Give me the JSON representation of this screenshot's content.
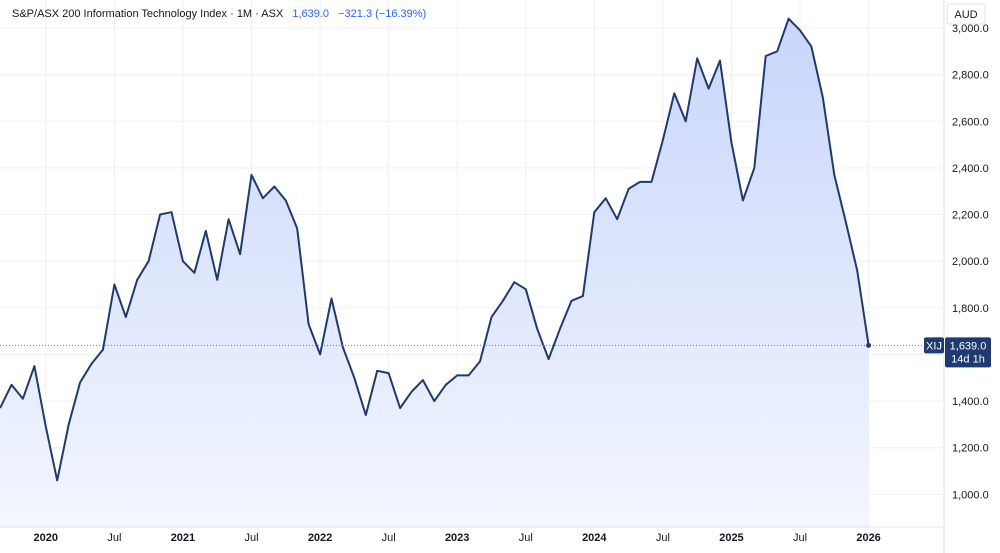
{
  "header": {
    "title": "S&P/ASX 200 Information Technology Index · 1M · ASX",
    "last_value": "1,639.0",
    "change": "−321.3 (−16.39%)"
  },
  "axis": {
    "currency": "AUD"
  },
  "price_badge": {
    "symbol": "XIJ",
    "value": "1,639.0",
    "countdown": "14d 1h"
  },
  "colors": {
    "line": "#1e3a6e",
    "fill_top": "#c9d6fb",
    "fill_bottom": "#f3f6fe",
    "badge": "#1e3a6e",
    "grid": "#eef0f3",
    "last_price_line": "#6b7a99"
  },
  "chart_data": {
    "type": "area",
    "title": "S&P/ASX 200 Information Technology Index · 1M · ASX",
    "xlabel": "",
    "ylabel": "",
    "ylim": [
      860,
      3120
    ],
    "grid": true,
    "x_tick_labels": [
      {
        "label": "2020",
        "t": 2020.0,
        "bold": true
      },
      {
        "label": "Jul",
        "t": 2020.5,
        "bold": false
      },
      {
        "label": "2021",
        "t": 2021.0,
        "bold": true
      },
      {
        "label": "Jul",
        "t": 2021.5,
        "bold": false
      },
      {
        "label": "2022",
        "t": 2022.0,
        "bold": true
      },
      {
        "label": "Jul",
        "t": 2022.5,
        "bold": false
      },
      {
        "label": "2023",
        "t": 2023.0,
        "bold": true
      },
      {
        "label": "Jul",
        "t": 2023.5,
        "bold": false
      },
      {
        "label": "2024",
        "t": 2024.0,
        "bold": true
      },
      {
        "label": "Jul",
        "t": 2024.5,
        "bold": false
      },
      {
        "label": "2025",
        "t": 2025.0,
        "bold": true
      },
      {
        "label": "Jul",
        "t": 2025.5,
        "bold": false
      },
      {
        "label": "2026",
        "t": 2026.0,
        "bold": true
      }
    ],
    "y_ticks": [
      {
        "label": "1,000.0",
        "value": 1000
      },
      {
        "label": "1,200.0",
        "value": 1200
      },
      {
        "label": "1,400.0",
        "value": 1400
      },
      {
        "label": "1,600.0",
        "value": 1600
      },
      {
        "label": "1,800.0",
        "value": 1800
      },
      {
        "label": "2,000.0",
        "value": 2000
      },
      {
        "label": "2,200.0",
        "value": 2200
      },
      {
        "label": "2,400.0",
        "value": 2400
      },
      {
        "label": "2,600.0",
        "value": 2600
      },
      {
        "label": "2,800.0",
        "value": 2800
      },
      {
        "label": "3,000.0",
        "value": 3000
      }
    ],
    "last_value": 1639.0,
    "series": [
      {
        "points": [
          [
            "2019-09",
            1370
          ],
          [
            "2019-10",
            1470
          ],
          [
            "2019-11",
            1410
          ],
          [
            "2019-12",
            1550
          ],
          [
            "2020-01",
            1290
          ],
          [
            "2020-02",
            1060
          ],
          [
            "2020-03",
            1300
          ],
          [
            "2020-04",
            1480
          ],
          [
            "2020-05",
            1560
          ],
          [
            "2020-06",
            1620
          ],
          [
            "2020-07",
            1900
          ],
          [
            "2020-08",
            1760
          ],
          [
            "2020-09",
            1920
          ],
          [
            "2020-10",
            2000
          ],
          [
            "2020-11",
            2200
          ],
          [
            "2020-12",
            2210
          ],
          [
            "2021-01",
            2000
          ],
          [
            "2021-02",
            1950
          ],
          [
            "2021-03",
            2130
          ],
          [
            "2021-04",
            1920
          ],
          [
            "2021-05",
            2180
          ],
          [
            "2021-06",
            2030
          ],
          [
            "2021-07",
            2370
          ],
          [
            "2021-08",
            2270
          ],
          [
            "2021-09",
            2320
          ],
          [
            "2021-10",
            2260
          ],
          [
            "2021-11",
            2140
          ],
          [
            "2021-12",
            1730
          ],
          [
            "2022-01",
            1600
          ],
          [
            "2022-02",
            1840
          ],
          [
            "2022-03",
            1630
          ],
          [
            "2022-04",
            1500
          ],
          [
            "2022-05",
            1340
          ],
          [
            "2022-06",
            1530
          ],
          [
            "2022-07",
            1520
          ],
          [
            "2022-08",
            1370
          ],
          [
            "2022-09",
            1440
          ],
          [
            "2022-10",
            1490
          ],
          [
            "2022-11",
            1400
          ],
          [
            "2022-12",
            1470
          ],
          [
            "2023-01",
            1510
          ],
          [
            "2023-02",
            1510
          ],
          [
            "2023-03",
            1570
          ],
          [
            "2023-04",
            1760
          ],
          [
            "2023-05",
            1830
          ],
          [
            "2023-06",
            1910
          ],
          [
            "2023-07",
            1880
          ],
          [
            "2023-08",
            1710
          ],
          [
            "2023-09",
            1580
          ],
          [
            "2023-10",
            1710
          ],
          [
            "2023-11",
            1830
          ],
          [
            "2023-12",
            1850
          ],
          [
            "2024-01",
            2210
          ],
          [
            "2024-02",
            2270
          ],
          [
            "2024-03",
            2180
          ],
          [
            "2024-04",
            2310
          ],
          [
            "2024-05",
            2340
          ],
          [
            "2024-06",
            2340
          ],
          [
            "2024-07",
            2520
          ],
          [
            "2024-08",
            2720
          ],
          [
            "2024-09",
            2600
          ],
          [
            "2024-10",
            2870
          ],
          [
            "2024-11",
            2740
          ],
          [
            "2024-12",
            2860
          ],
          [
            "2025-01",
            2510
          ],
          [
            "2025-02",
            2260
          ],
          [
            "2025-03",
            2400
          ],
          [
            "2025-04",
            2880
          ],
          [
            "2025-05",
            2900
          ],
          [
            "2025-06",
            3040
          ],
          [
            "2025-07",
            2990
          ],
          [
            "2025-08",
            2920
          ],
          [
            "2025-09",
            2700
          ],
          [
            "2025-10",
            2370
          ],
          [
            "2025-11",
            2170
          ],
          [
            "2025-12",
            1960
          ],
          [
            "2026-01",
            1639
          ]
        ]
      }
    ]
  }
}
